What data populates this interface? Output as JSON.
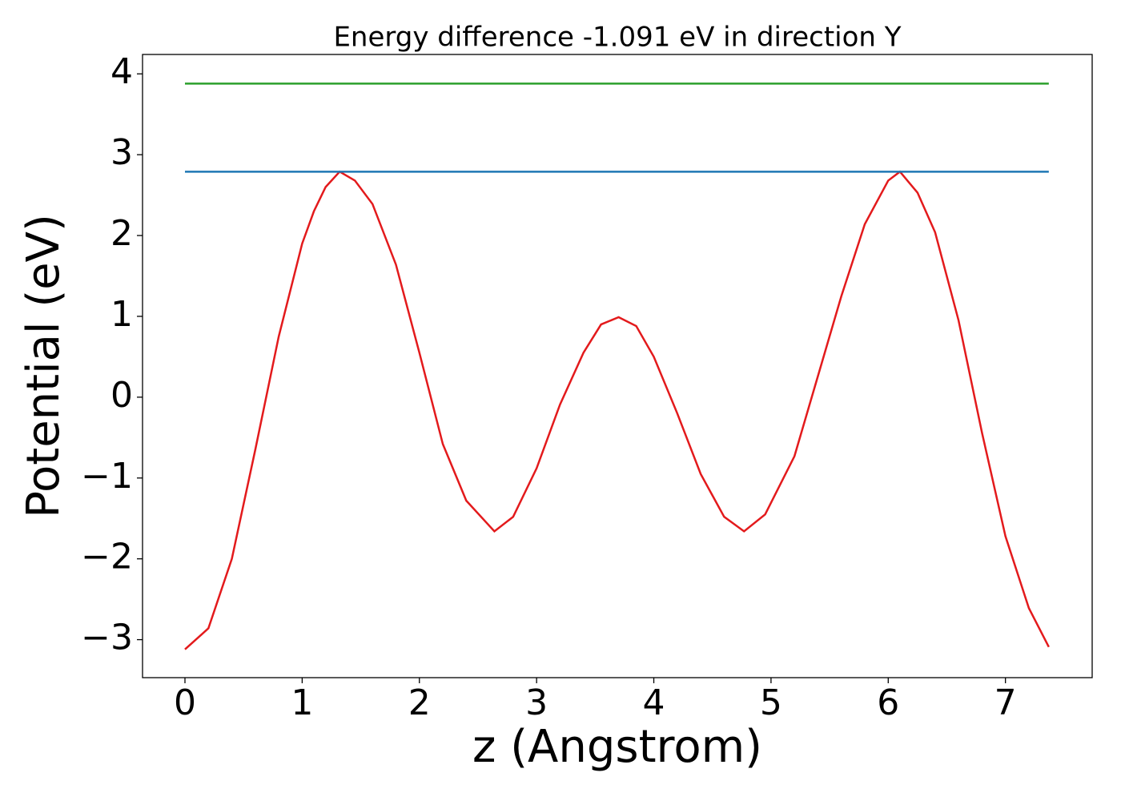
{
  "chart_data": {
    "type": "line",
    "title": "Energy difference -1.091 eV in direction Y",
    "x_label": "z (Angstrom)",
    "y_label": "Potential (eV)",
    "xlim": [
      -0.362,
      7.74
    ],
    "ylim": [
      -3.47,
      4.24
    ],
    "xticks": [
      0,
      1,
      2,
      3,
      4,
      5,
      6,
      7
    ],
    "yticks": [
      {
        "value": -3,
        "label": "−3"
      },
      {
        "value": -2,
        "label": "−2"
      },
      {
        "value": -1,
        "label": "−1"
      },
      0,
      1,
      2,
      3,
      4
    ],
    "series": [
      {
        "color": "#e31a1c",
        "x": [
          0,
          0.2,
          0.4,
          0.6,
          0.8,
          1.0,
          1.1,
          1.2,
          1.32,
          1.45,
          1.6,
          1.8,
          2.0,
          2.2,
          2.4,
          2.64,
          2.8,
          3.0,
          3.2,
          3.4,
          3.55,
          3.7,
          3.85,
          4.0,
          4.2,
          4.4,
          4.6,
          4.77,
          4.95,
          5.2,
          5.4,
          5.6,
          5.8,
          6.0,
          6.1,
          6.25,
          6.4,
          6.6,
          6.8,
          7.0,
          7.2,
          7.37
        ],
        "values": [
          -3.12,
          -2.86,
          -2.0,
          -0.65,
          0.75,
          1.9,
          2.3,
          2.6,
          2.79,
          2.68,
          2.39,
          1.64,
          0.55,
          -0.58,
          -1.28,
          -1.66,
          -1.48,
          -0.88,
          -0.09,
          0.55,
          0.9,
          0.99,
          0.88,
          0.5,
          -0.2,
          -0.95,
          -1.48,
          -1.66,
          -1.45,
          -0.73,
          0.26,
          1.25,
          2.14,
          2.68,
          2.79,
          2.53,
          2.04,
          0.95,
          -0.44,
          -1.72,
          -2.61,
          -3.09
        ]
      },
      {
        "color": "#1f77b4",
        "x": [
          0,
          7.37
        ],
        "values": [
          2.79,
          2.79
        ]
      },
      {
        "color": "#2ca02c",
        "x": [
          0,
          7.37
        ],
        "values": [
          3.88,
          3.88
        ]
      }
    ]
  }
}
